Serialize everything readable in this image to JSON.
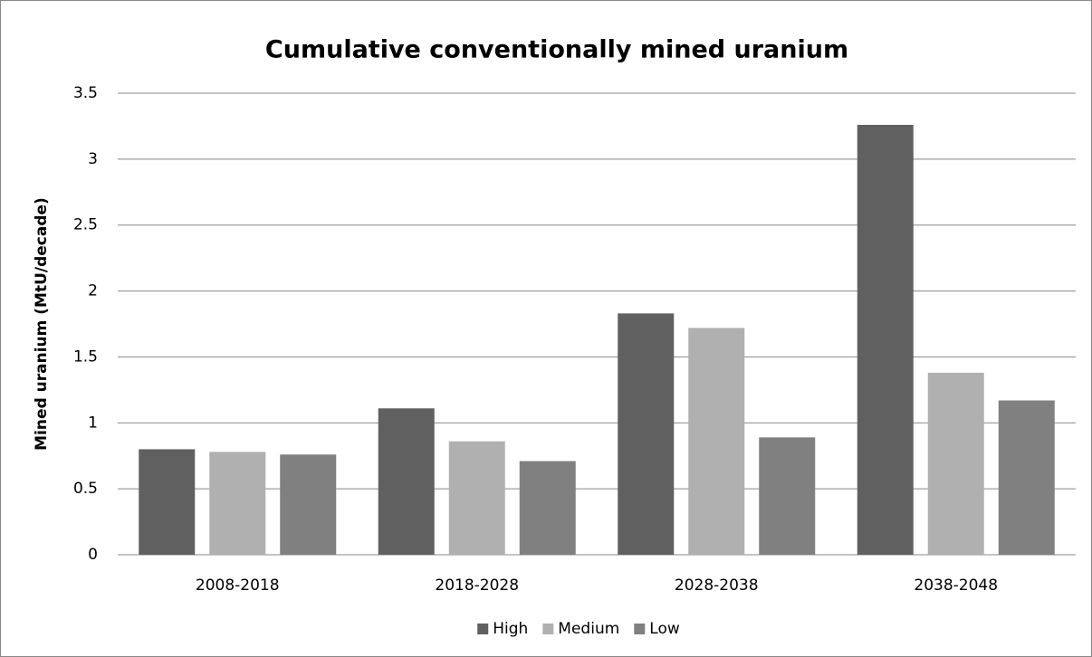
{
  "chart_data": {
    "type": "bar",
    "title": "Cumulative conventionally mined uranium",
    "y_label": "Mined uranium (MtU/decade)",
    "categories": [
      "2008-2018",
      "2018-2028",
      "2028-2038",
      "2038-2048"
    ],
    "series": [
      {
        "name": "High",
        "color": "#606060",
        "values": [
          0.8,
          1.11,
          1.83,
          3.26
        ]
      },
      {
        "name": "Medium",
        "color": "#b0b0b0",
        "values": [
          0.78,
          0.86,
          1.72,
          1.38
        ]
      },
      {
        "name": "Low",
        "color": "#808080",
        "values": [
          0.76,
          0.71,
          0.89,
          1.17
        ]
      }
    ],
    "ylim": [
      0,
      3.5
    ],
    "yticks": [
      0,
      0.5,
      1,
      1.5,
      2,
      2.5,
      3,
      3.5
    ],
    "grid": true,
    "legend": "bottom"
  }
}
